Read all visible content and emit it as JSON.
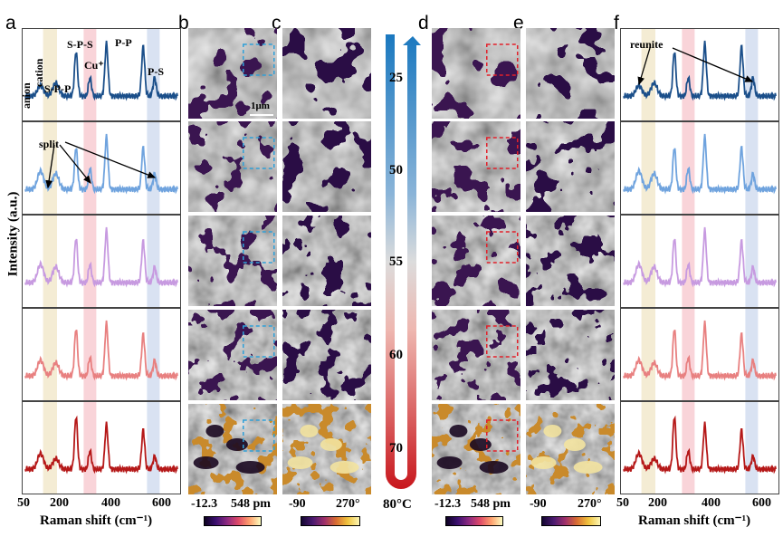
{
  "panels": [
    "a",
    "b",
    "c",
    "d",
    "e",
    "f"
  ],
  "temperature": {
    "labels": [
      "25",
      "50",
      "55",
      "60",
      "70",
      "80°C"
    ]
  },
  "height_scale": {
    "min": "-12.3",
    "max": "548 pm"
  },
  "phase_scale": {
    "min": "-90",
    "max": "270°"
  },
  "scale_bar": "1μm",
  "annotations": {
    "anion": "anion",
    "cation": "cation",
    "spp": "S-P-P",
    "sps": "S-P-S",
    "cu": "Cu⁺",
    "pp": "P-P",
    "ps": "P-S",
    "split": "split",
    "reunite": "reunite"
  },
  "axis": {
    "ylabel": "Intensity (a.u.)",
    "xlabel": "Raman shift (cm⁻¹)",
    "a_ticks": [
      "50",
      "200",
      "400",
      "600"
    ],
    "f_ticks": [
      "50",
      "200",
      "400",
      "600"
    ]
  },
  "colors": {
    "spectra": [
      "#1b4f8a",
      "#6fa3de",
      "#c79ae0",
      "#e88080",
      "#b51818"
    ],
    "band_yellow": "#f4ecd4",
    "band_pink": "#f9d4d9",
    "band_blue": "#d9e2f2",
    "box_blue": "#2fa0d8",
    "box_red": "#e2202a"
  },
  "chart_data": {
    "type": "line",
    "title": "",
    "xlabel": "Raman shift (cm⁻¹)",
    "ylabel": "Intensity (a.u.)",
    "xlim": [
      50,
      650
    ],
    "peaks_cm": [
      110,
      170,
      250,
      305,
      370,
      515,
      560
    ],
    "series": [
      {
        "values": [
          0.2,
          0.25,
          0.85,
          0.35,
          1.0,
          0.95,
          0.35
        ]
      },
      {
        "values": [
          0.35,
          0.3,
          0.8,
          0.4,
          1.0,
          0.8,
          0.3
        ]
      },
      {
        "values": [
          0.35,
          0.3,
          0.85,
          0.35,
          1.0,
          0.8,
          0.3
        ]
      },
      {
        "values": [
          0.3,
          0.25,
          0.9,
          0.35,
          1.0,
          0.8,
          0.3
        ]
      },
      {
        "values": [
          0.3,
          0.2,
          1.0,
          0.35,
          0.85,
          0.75,
          0.25
        ]
      }
    ]
  }
}
